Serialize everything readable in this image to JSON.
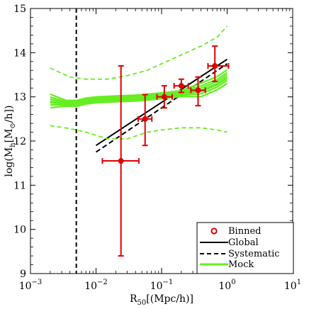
{
  "chart_data": {
    "type": "scatter",
    "title": "",
    "xlabel": "R_{50}[(Mpc/h)]",
    "ylabel": "log(M_h[M_⊙/h])",
    "x_scale": "log",
    "xlim": [
      0.001,
      10
    ],
    "ylim": [
      9,
      15
    ],
    "x_ticks": [
      {
        "value": 0.001,
        "base": "10",
        "exp": "−3"
      },
      {
        "value": 0.01,
        "base": "10",
        "exp": "−2"
      },
      {
        "value": 0.1,
        "base": "10",
        "exp": "−1"
      },
      {
        "value": 1,
        "base": "10",
        "exp": "0"
      },
      {
        "value": 10,
        "base": "10",
        "exp": "1"
      }
    ],
    "y_ticks": [
      9,
      10,
      11,
      12,
      13,
      14,
      15
    ],
    "grid": false,
    "legend_position": "bottom-right",
    "legend": {
      "binned": "Binned",
      "global": "Global",
      "systematic": "Systematic",
      "mock": "Mock"
    },
    "vertical_line_x": 0.005,
    "series": [
      {
        "name": "Binned",
        "kind": "errorbar",
        "color": "#dd0000",
        "points": [
          {
            "x": 0.024,
            "y": 11.55,
            "x_lo": 0.0125,
            "x_hi": 0.045,
            "y_lo": 9.4,
            "y_hi": 13.7
          },
          {
            "x": 0.056,
            "y": 12.5,
            "x_lo": 0.044,
            "x_hi": 0.071,
            "y_lo": 11.9,
            "y_hi": 13.05
          },
          {
            "x": 0.11,
            "y": 13.0,
            "x_lo": 0.085,
            "x_hi": 0.145,
            "y_lo": 12.75,
            "y_hi": 13.25
          },
          {
            "x": 0.2,
            "y": 13.25,
            "x_lo": 0.155,
            "x_hi": 0.255,
            "y_lo": 13.1,
            "y_hi": 13.4
          },
          {
            "x": 0.36,
            "y": 13.15,
            "x_lo": 0.28,
            "x_hi": 0.465,
            "y_lo": 12.8,
            "y_hi": 13.45
          },
          {
            "x": 0.65,
            "y": 13.7,
            "x_lo": 0.51,
            "x_hi": 1.05,
            "y_lo": 13.35,
            "y_hi": 14.15
          }
        ]
      },
      {
        "name": "Global",
        "kind": "line",
        "color": "#000000",
        "x": [
          0.01,
          1.0
        ],
        "y": [
          11.9,
          13.85
        ]
      },
      {
        "name": "Systematic",
        "kind": "dashed-line",
        "color": "#000000",
        "x": [
          0.01,
          1.0
        ],
        "y": [
          11.75,
          13.75
        ]
      },
      {
        "name": "Mock",
        "kind": "band-lines",
        "color": "#66ee22",
        "x": [
          0.002,
          0.0035,
          0.005,
          0.007,
          0.01,
          0.02,
          0.04,
          0.07,
          0.1,
          0.2,
          0.4,
          0.7,
          1.0
        ],
        "y": [
          12.9,
          12.85,
          12.85,
          12.9,
          12.93,
          12.95,
          12.97,
          13.0,
          13.02,
          13.07,
          13.15,
          13.3,
          13.45
        ],
        "upper_dashed": {
          "x": [
            0.002,
            0.004,
            0.007,
            0.015,
            0.03,
            0.06,
            0.1,
            0.2,
            0.4,
            0.7,
            1.0
          ],
          "y": [
            13.65,
            13.45,
            13.4,
            13.4,
            13.48,
            13.6,
            13.75,
            13.95,
            14.15,
            14.35,
            14.6
          ]
        },
        "lower_dashed": {
          "x": [
            0.002,
            0.004,
            0.007,
            0.015,
            0.03,
            0.06,
            0.1,
            0.2,
            0.4,
            0.7,
            1.0
          ],
          "y": [
            12.35,
            12.28,
            12.2,
            12.05,
            12.05,
            12.2,
            12.25,
            12.3,
            12.3,
            12.25,
            12.2
          ]
        }
      }
    ]
  }
}
